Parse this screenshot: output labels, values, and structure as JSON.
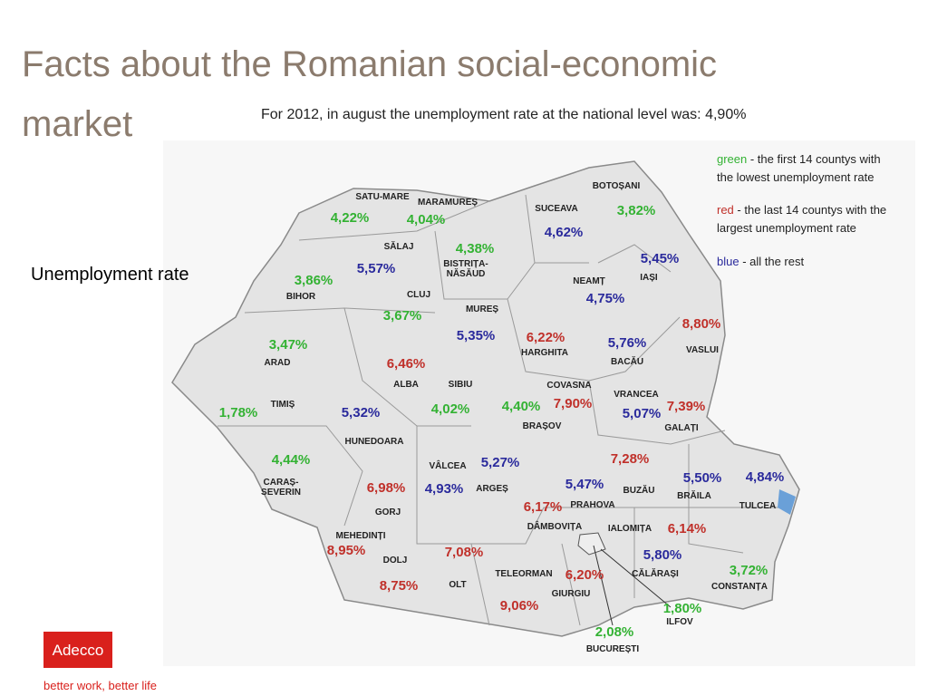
{
  "title_lines": [
    "Facts about the Romanian social-economic",
    "market"
  ],
  "subtitle": "For 2012, in august the unemployment rate at the national level was: 4,90%",
  "side_label": "Unemployment rate",
  "legend": [
    {
      "key": "green",
      "color": "#33b233",
      "text_lines": [
        " - the first 14 countys with",
        "the lowest unemployment rate"
      ]
    },
    {
      "key": "red",
      "color": "#c0302a",
      "text_lines": [
        " - the last 14 countys with the",
        "largest unemployment rate"
      ]
    },
    {
      "key": "blue",
      "color": "#2a2a9c",
      "text_lines": [
        " - all the rest"
      ]
    }
  ],
  "counties": [
    {
      "name": [
        "SATU-MARE"
      ],
      "rate": "4,22%",
      "group": 0
    },
    {
      "name": [
        "MARAMUREȘ"
      ],
      "rate": "4,04%",
      "group": 0
    },
    {
      "name": [
        "SĂLAJ"
      ],
      "rate": "5,57%",
      "group": 2
    },
    {
      "name": [
        "BISTRIȚA-",
        "NĂSĂUD"
      ],
      "rate": "4,38%",
      "group": 0
    },
    {
      "name": [
        "BOTOȘANI"
      ],
      "rate": "3,82%",
      "group": 0
    },
    {
      "name": [
        "SUCEAVA"
      ],
      "rate": "4,62%",
      "group": 2
    },
    {
      "name": [
        "IAȘI"
      ],
      "rate": "5,45%",
      "group": 2
    },
    {
      "name": [
        "NEAMȚ"
      ],
      "rate": "4,75%",
      "group": 2
    },
    {
      "name": [
        "BIHOR"
      ],
      "rate": "3,86%",
      "group": 0
    },
    {
      "name": [
        "CLUJ"
      ],
      "rate": "3,67%",
      "group": 0
    },
    {
      "name": [
        "MUREȘ"
      ],
      "rate": "5,35%",
      "group": 2
    },
    {
      "name": [
        "HARGHITA"
      ],
      "rate": "6,22%",
      "group": 1
    },
    {
      "name": [
        "BACĂU"
      ],
      "rate": "5,76%",
      "group": 2
    },
    {
      "name": [
        "VASLUI"
      ],
      "rate": "8,80%",
      "group": 1
    },
    {
      "name": [
        "ARAD"
      ],
      "rate": "3,47%",
      "group": 0
    },
    {
      "name": [
        "ALBA"
      ],
      "rate": "6,46%",
      "group": 1
    },
    {
      "name": [
        "SIBIU"
      ],
      "rate": "4,02%",
      "group": 0
    },
    {
      "name": [
        "COVASNA"
      ],
      "rate": "7,90%",
      "group": 1
    },
    {
      "name": [
        "VRANCEA"
      ],
      "rate": "5,07%",
      "group": 2
    },
    {
      "name": [
        "GALAȚI"
      ],
      "rate": "7,39%",
      "group": 1
    },
    {
      "name": [
        "TIMIȘ"
      ],
      "rate": "1,78%",
      "group": 0
    },
    {
      "name": [
        "HUNEDOARA"
      ],
      "rate": "5,32%",
      "group": 2
    },
    {
      "name": [
        "BRAȘOV"
      ],
      "rate": "4,40%",
      "group": 0
    },
    {
      "name": [
        "CARAȘ-",
        "SEVERIN"
      ],
      "rate": "4,44%",
      "group": 0
    },
    {
      "name": [
        "VÂLCEA"
      ],
      "rate": "4,93%",
      "group": 2
    },
    {
      "name": [
        "ARGEȘ"
      ],
      "rate": "5,27%",
      "group": 2
    },
    {
      "name": [
        "PRAHOVA"
      ],
      "rate": "5,47%",
      "group": 2
    },
    {
      "name": [
        "BUZĂU"
      ],
      "rate": "7,28%",
      "group": 1
    },
    {
      "name": [
        "BRĂILA"
      ],
      "rate": "5,50%",
      "group": 2
    },
    {
      "name": [
        "TULCEA"
      ],
      "rate": "4,84%",
      "group": 2
    },
    {
      "name": [
        "GORJ"
      ],
      "rate": "6,98%",
      "group": 1
    },
    {
      "name": [
        "DÂMBOVIȚA"
      ],
      "rate": "6,17%",
      "group": 1
    },
    {
      "name": [
        "IALOMIȚA"
      ],
      "rate": "6,14%",
      "group": 1
    },
    {
      "name": [
        "MEHEDINȚI"
      ],
      "rate": "8,95%",
      "group": 1
    },
    {
      "name": [
        "DOLJ"
      ],
      "rate": "8,75%",
      "group": 1
    },
    {
      "name": [
        "OLT"
      ],
      "rate": "7,08%",
      "group": 1
    },
    {
      "name": [
        "TELEORMAN"
      ],
      "rate": "9,06%",
      "group": 1
    },
    {
      "name": [
        "GIURGIU"
      ],
      "rate": "6,20%",
      "group": 1
    },
    {
      "name": [
        "CĂLĂRAȘI"
      ],
      "rate": "5,80%",
      "group": 2
    },
    {
      "name": [
        "CONSTANȚA"
      ],
      "rate": "3,72%",
      "group": 0
    },
    {
      "name": [
        "ILFOV"
      ],
      "rate": "1,80%",
      "group": 0
    },
    {
      "name": [
        "BUCUREȘTI"
      ],
      "rate": "2,08%",
      "group": 0
    }
  ],
  "logo": "Adecco",
  "tagline": "better work, better life"
}
